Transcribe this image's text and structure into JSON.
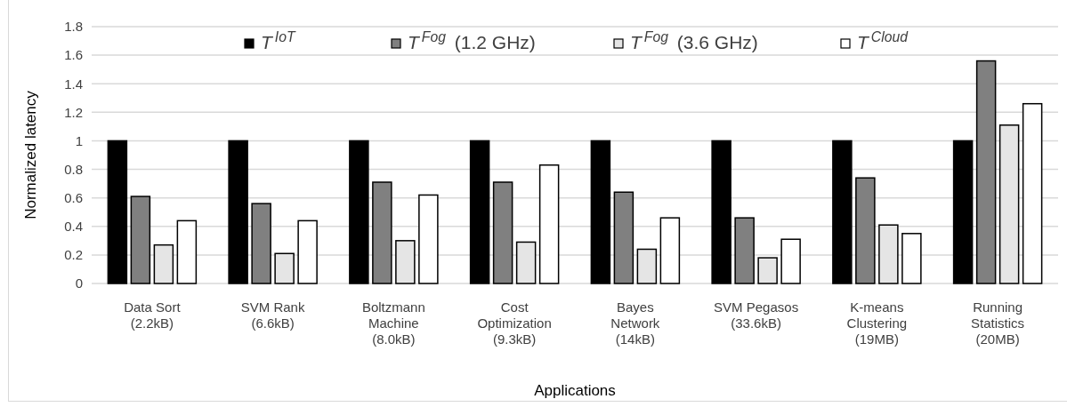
{
  "chart_data": {
    "type": "bar",
    "xlabel": "Applications",
    "ylabel": "Normalized latency",
    "categories": [
      "Data Sort\n(2.2kB)",
      "SVM Rank\n(6.6kB)",
      "Boltzmann\nMachine\n(8.0kB)",
      "Cost\nOptimization\n(9.3kB)",
      "Bayes\nNetwork\n(14kB)",
      "SVM Pegasos\n(33.6kB)",
      "K-means\nClustering\n(19MB)",
      "Running\nStatistics\n(20MB)"
    ],
    "series": [
      {
        "name": "T$^{IoT}$",
        "color": "#000000",
        "values": [
          1,
          1,
          1,
          1,
          1,
          1,
          1,
          1
        ]
      },
      {
        "name": "T$^{Fog}$ (1.2 GHz)",
        "color": "#808080",
        "values": [
          0.61,
          0.56,
          0.71,
          0.71,
          0.64,
          0.46,
          0.74,
          1.56
        ]
      },
      {
        "name": "T$^{Fog}$ (3.6 GHz)",
        "color": "#e5e5e5",
        "values": [
          0.27,
          0.21,
          0.3,
          0.29,
          0.24,
          0.18,
          0.41,
          1.11
        ]
      },
      {
        "name": "T$^{Cloud}$",
        "color": "#ffffff",
        "values": [
          0.44,
          0.44,
          0.62,
          0.83,
          0.46,
          0.31,
          0.35,
          1.26
        ]
      }
    ],
    "ylim": [
      0,
      1.8
    ],
    "yticks": [
      0,
      0.2,
      0.4,
      0.6,
      0.8,
      1,
      1.2,
      1.4,
      1.6,
      1.8
    ],
    "grid": "y",
    "legend": "top"
  }
}
